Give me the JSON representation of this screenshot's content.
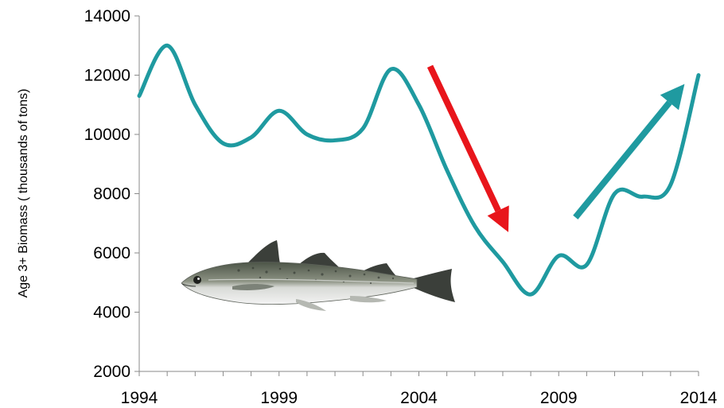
{
  "chart_data": {
    "type": "line",
    "title": "",
    "xlabel": "",
    "ylabel": "Age 3+ Biomass ( thousands of tons)",
    "xlim": [
      1994,
      2014
    ],
    "ylim": [
      2000,
      14000
    ],
    "x_ticks": [
      1994,
      1999,
      2004,
      2009,
      2014
    ],
    "y_ticks": [
      2000,
      4000,
      6000,
      8000,
      10000,
      12000,
      14000
    ],
    "x_tick_labels": [
      "1994",
      "1999",
      "2004",
      "2009",
      "2014"
    ],
    "y_tick_labels": [
      "2000",
      "4000",
      "6000",
      "8000",
      "10000",
      "12000",
      "14000"
    ],
    "grid": false,
    "legend": "none",
    "series": [
      {
        "color": "#1f9aa0",
        "x": [
          1994,
          1995,
          1996,
          1997,
          1998,
          1999,
          2000,
          2001,
          2002,
          2003,
          2004,
          2005,
          2006,
          2007,
          2008,
          2009,
          2010,
          2011,
          2012,
          2013,
          2014
        ],
        "y": [
          11300,
          13000,
          11000,
          9700,
          9900,
          10800,
          10000,
          9800,
          10200,
          12200,
          11000,
          8800,
          6900,
          5700,
          4600,
          5900,
          5600,
          8000,
          7900,
          8300,
          12000
        ]
      }
    ],
    "annotations": [
      {
        "type": "arrow",
        "color": "#e8151b",
        "meaning": "decline",
        "from": [
          2004.4,
          12300
        ],
        "to": [
          2007.2,
          6700
        ]
      },
      {
        "type": "arrow",
        "color": "#1f9aa0",
        "meaning": "increase",
        "from": [
          2009.6,
          7200
        ],
        "to": [
          2013.5,
          11700
        ]
      },
      {
        "type": "image",
        "icon": "pollock-fish-icon"
      }
    ]
  }
}
